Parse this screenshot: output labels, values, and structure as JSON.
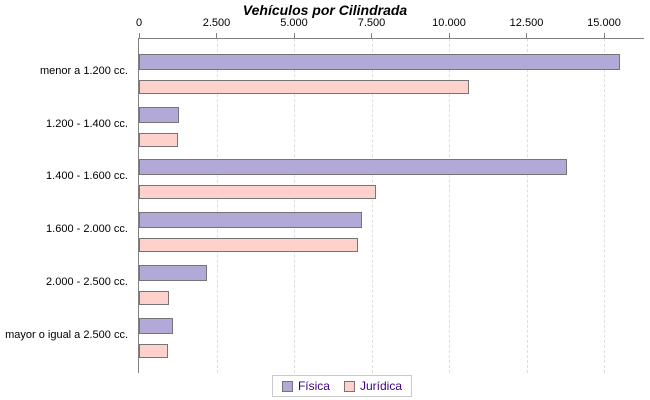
{
  "chart_data": {
    "type": "bar",
    "orientation": "horizontal",
    "title": "Vehículos por Cilindrada",
    "categories": [
      "menor a 1.200 cc.",
      "1.200 - 1.400 cc.",
      "1.400 - 1.600 cc.",
      "1.600 - 2.000 cc.",
      "2.000 - 2.500 cc.",
      "mayor o igual a 2.500 cc."
    ],
    "series": [
      {
        "name": "Física",
        "color": "#b3a9d8",
        "values": [
          15500,
          1300,
          13800,
          7200,
          2200,
          1100
        ]
      },
      {
        "name": "Jurídica",
        "color": "#ffd1cc",
        "values": [
          10650,
          1260,
          7650,
          7050,
          970,
          940
        ]
      }
    ],
    "xlim": [
      0,
      16290
    ],
    "x_ticks": [
      {
        "value": 0,
        "label": "0"
      },
      {
        "value": 2500,
        "label": "2.500"
      },
      {
        "value": 5000,
        "label": "5.000"
      },
      {
        "value": 7500,
        "label": "7.500"
      },
      {
        "value": 10000,
        "label": "10.000"
      },
      {
        "value": 12500,
        "label": "12.500"
      },
      {
        "value": 15000,
        "label": "15.000"
      }
    ],
    "grid": "vertical-dashed",
    "axis_position": "top",
    "legend_position": "bottom"
  },
  "colors": {
    "bar_border": "#757575",
    "axis_line": "#808080",
    "gridline": "#dedede",
    "legend_text": "#400080",
    "background": "#ffffff"
  }
}
